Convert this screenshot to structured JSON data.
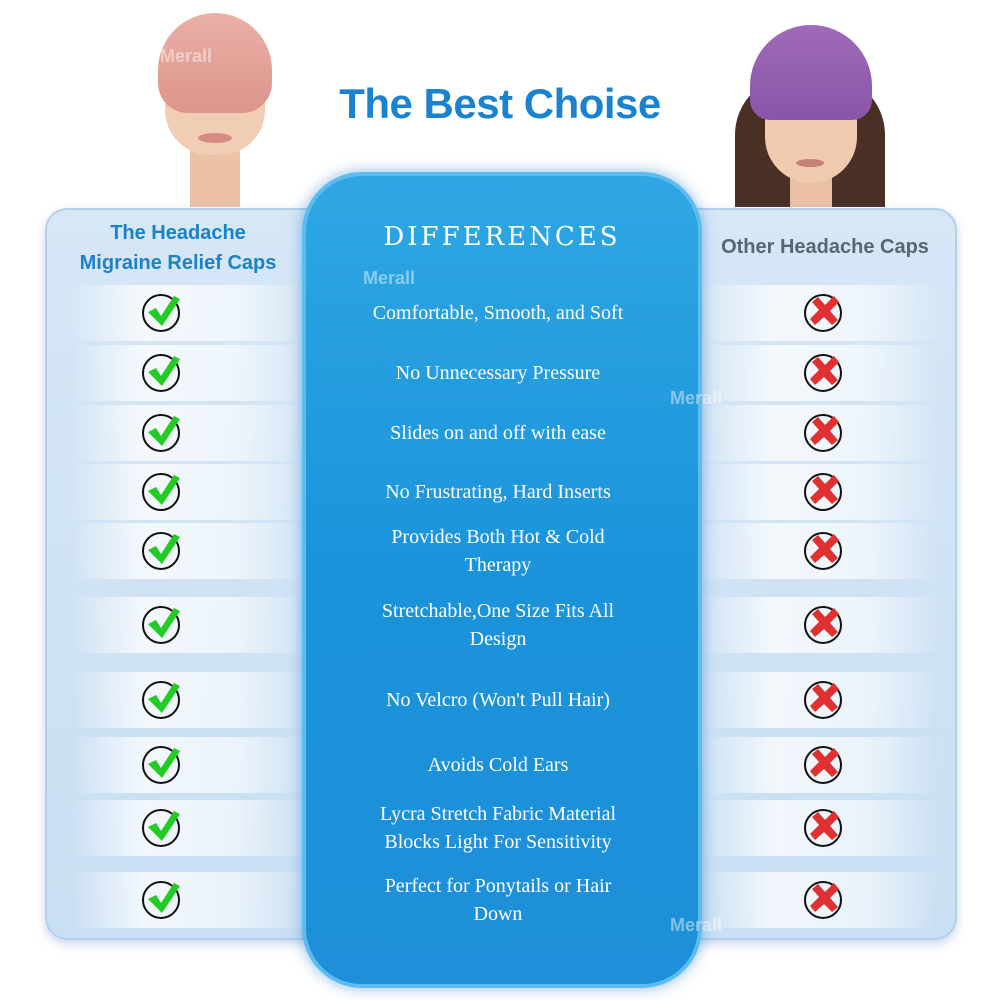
{
  "title": "The Best Choise",
  "left_column": {
    "heading_line1": "The Headache",
    "heading_line2": "Migraine Relief Caps",
    "mark_icon": "check-icon",
    "mark_color": "#22cc22"
  },
  "center_column": {
    "heading": "DIFFERENCES",
    "features": [
      [
        "Comfortable, Smooth, and Soft"
      ],
      [
        "No Unnecessary Pressure"
      ],
      [
        "Slides on and off with ease"
      ],
      [
        "No Frustrating, Hard Inserts"
      ],
      [
        "Provides Both Hot & Cold",
        "Therapy"
      ],
      [
        "Stretchable,One Size Fits All",
        "Design"
      ],
      [
        "No Velcro (Won't Pull Hair)"
      ],
      [
        "Avoids Cold Ears"
      ],
      [
        "Lycra Stretch Fabric Material",
        "Blocks Light For Sensitivity"
      ],
      [
        "Perfect for Ponytails or Hair",
        "Down"
      ]
    ]
  },
  "right_column": {
    "heading": "Other Headache Caps",
    "mark_icon": "cross-icon",
    "mark_color": "#e03030"
  },
  "watermark": "Merall",
  "colors": {
    "title": "#1a82d0",
    "center_panel": "#1a93db",
    "side_panel": "#d6e7f6"
  }
}
